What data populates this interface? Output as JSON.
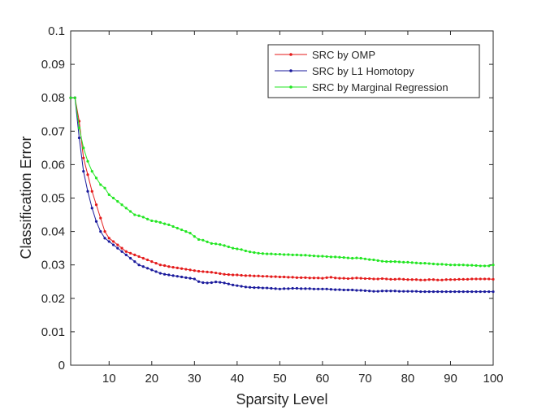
{
  "chart_data": {
    "type": "line",
    "title": "",
    "xlabel": "Sparsity Level",
    "ylabel": "Classification Error",
    "xlim": [
      1,
      100
    ],
    "ylim": [
      0,
      0.1
    ],
    "xticks": [
      10,
      20,
      30,
      40,
      50,
      60,
      70,
      80,
      90,
      100
    ],
    "xtick_labels": [
      "10",
      "20",
      "30",
      "40",
      "50",
      "60",
      "70",
      "80",
      "90",
      "100"
    ],
    "yticks": [
      0,
      0.01,
      0.02,
      0.03,
      0.04,
      0.05,
      0.06,
      0.07,
      0.08,
      0.09,
      0.1
    ],
    "ytick_labels": [
      "0",
      "0.01",
      "0.02",
      "0.03",
      "0.04",
      "0.05",
      "0.06",
      "0.07",
      "0.08",
      "0.09",
      "0.1"
    ],
    "grid": false,
    "legend_position": "top-right",
    "x": [
      1,
      2,
      3,
      4,
      5,
      6,
      7,
      8,
      9,
      10,
      11,
      12,
      13,
      14,
      15,
      16,
      17,
      18,
      19,
      20,
      21,
      22,
      23,
      24,
      25,
      26,
      27,
      28,
      29,
      30,
      31,
      32,
      33,
      34,
      35,
      36,
      37,
      38,
      39,
      40,
      41,
      42,
      43,
      44,
      45,
      46,
      47,
      48,
      49,
      50,
      51,
      52,
      53,
      54,
      55,
      56,
      57,
      58,
      59,
      60,
      61,
      62,
      63,
      64,
      65,
      66,
      67,
      68,
      69,
      70,
      71,
      72,
      73,
      74,
      75,
      76,
      77,
      78,
      79,
      80,
      81,
      82,
      83,
      84,
      85,
      86,
      87,
      88,
      89,
      90,
      91,
      92,
      93,
      94,
      95,
      96,
      97,
      98,
      99,
      100
    ],
    "series": [
      {
        "name": "SRC by OMP",
        "color": "#e41a1a",
        "values": [
          0.08,
          0.08,
          0.073,
          0.062,
          0.057,
          0.052,
          0.048,
          0.044,
          0.04,
          0.038,
          0.037,
          0.036,
          0.035,
          0.034,
          0.0335,
          0.033,
          0.0325,
          0.032,
          0.0315,
          0.031,
          0.0305,
          0.03,
          0.0298,
          0.0295,
          0.0293,
          0.0291,
          0.0289,
          0.0287,
          0.0285,
          0.0283,
          0.0281,
          0.028,
          0.0279,
          0.0278,
          0.0276,
          0.0274,
          0.0272,
          0.0271,
          0.027,
          0.027,
          0.0269,
          0.0268,
          0.0268,
          0.0267,
          0.0267,
          0.0266,
          0.0266,
          0.0265,
          0.0265,
          0.0264,
          0.0264,
          0.0263,
          0.0263,
          0.0262,
          0.0262,
          0.0262,
          0.0261,
          0.0261,
          0.0261,
          0.026,
          0.0262,
          0.0263,
          0.0261,
          0.026,
          0.026,
          0.0259,
          0.026,
          0.0261,
          0.026,
          0.0259,
          0.0259,
          0.0258,
          0.0258,
          0.0259,
          0.0258,
          0.0257,
          0.0257,
          0.0258,
          0.0257,
          0.0256,
          0.0256,
          0.0256,
          0.0255,
          0.0255,
          0.0256,
          0.0256,
          0.0255,
          0.0255,
          0.0256,
          0.0256,
          0.0256,
          0.0257,
          0.0257,
          0.0257,
          0.0258,
          0.0258,
          0.0258,
          0.0258,
          0.0258,
          0.0257
        ]
      },
      {
        "name": "SRC by L1 Homotopy",
        "color": "#1a1a9c",
        "values": [
          0.08,
          0.08,
          0.068,
          0.058,
          0.052,
          0.047,
          0.043,
          0.04,
          0.038,
          0.037,
          0.036,
          0.035,
          0.034,
          0.033,
          0.032,
          0.031,
          0.03,
          0.0295,
          0.029,
          0.0285,
          0.028,
          0.0275,
          0.0272,
          0.027,
          0.0268,
          0.0266,
          0.0264,
          0.0262,
          0.026,
          0.0258,
          0.025,
          0.0247,
          0.0246,
          0.0247,
          0.0249,
          0.0248,
          0.0246,
          0.0243,
          0.024,
          0.0238,
          0.0236,
          0.0234,
          0.0233,
          0.0232,
          0.0232,
          0.0231,
          0.0231,
          0.023,
          0.0229,
          0.0228,
          0.0229,
          0.0229,
          0.023,
          0.023,
          0.0229,
          0.0229,
          0.0229,
          0.0228,
          0.0228,
          0.0228,
          0.0228,
          0.0227,
          0.0226,
          0.0226,
          0.0225,
          0.0225,
          0.0225,
          0.0224,
          0.0224,
          0.0223,
          0.0222,
          0.0221,
          0.0221,
          0.0222,
          0.0222,
          0.0222,
          0.0222,
          0.0221,
          0.0221,
          0.0221,
          0.0221,
          0.0221,
          0.022,
          0.022,
          0.022,
          0.022,
          0.022,
          0.022,
          0.022,
          0.022,
          0.022,
          0.022,
          0.022,
          0.022,
          0.022,
          0.022,
          0.022,
          0.022,
          0.022,
          0.022
        ]
      },
      {
        "name": "SRC by Marginal Regression",
        "color": "#22e622",
        "values": [
          0.08,
          0.08,
          0.071,
          0.065,
          0.061,
          0.058,
          0.056,
          0.054,
          0.053,
          0.051,
          0.05,
          0.049,
          0.048,
          0.047,
          0.046,
          0.045,
          0.0447,
          0.0443,
          0.0437,
          0.0432,
          0.043,
          0.0427,
          0.0423,
          0.042,
          0.0415,
          0.041,
          0.0405,
          0.04,
          0.0395,
          0.0385,
          0.0376,
          0.0374,
          0.0369,
          0.0364,
          0.0363,
          0.0361,
          0.0358,
          0.0354,
          0.035,
          0.0348,
          0.0346,
          0.0342,
          0.0339,
          0.0337,
          0.0335,
          0.0334,
          0.0333,
          0.0333,
          0.0332,
          0.0332,
          0.0331,
          0.0331,
          0.033,
          0.033,
          0.0329,
          0.0329,
          0.0328,
          0.0327,
          0.0326,
          0.0326,
          0.0325,
          0.0324,
          0.0324,
          0.0323,
          0.0322,
          0.0321,
          0.032,
          0.0321,
          0.032,
          0.0318,
          0.0316,
          0.0315,
          0.0313,
          0.0311,
          0.031,
          0.031,
          0.031,
          0.0309,
          0.0308,
          0.0308,
          0.0307,
          0.0306,
          0.0305,
          0.0305,
          0.0304,
          0.0303,
          0.0302,
          0.0302,
          0.0301,
          0.03,
          0.03,
          0.03,
          0.03,
          0.0299,
          0.0299,
          0.0298,
          0.0297,
          0.0297,
          0.0297,
          0.03
        ]
      }
    ]
  }
}
